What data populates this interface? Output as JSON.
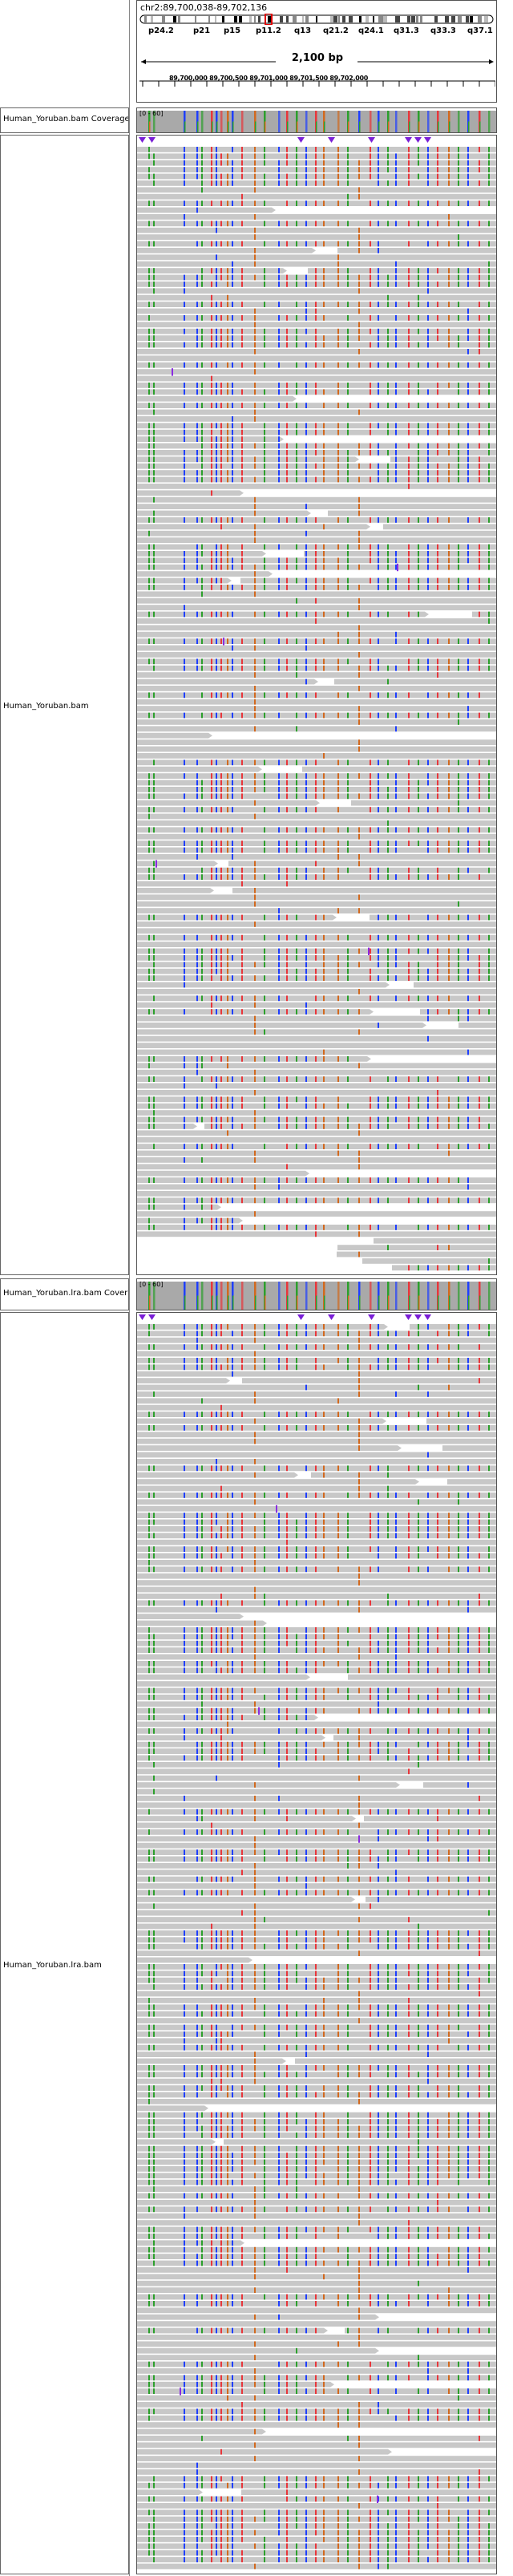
{
  "locus": "chr2:89,700,038-89,702,136",
  "span_label": "2,100 bp",
  "coordinate_labels": "89,700,000 89,700,500 89,701,000 89,701,500 89,702,000",
  "cytobands": [
    {
      "label": "p24.2"
    },
    {
      "label": "p21"
    },
    {
      "label": "p15"
    },
    {
      "label": "p11.2"
    },
    {
      "label": "q13"
    },
    {
      "label": "q21.2"
    },
    {
      "label": "q24.1"
    },
    {
      "label": "q31.3"
    },
    {
      "label": "q33.3"
    },
    {
      "label": "q37.1"
    }
  ],
  "tracks": [
    {
      "coverage_label": "Human_Yoruban.bam Coverage",
      "reads_label": "Human_Yoruban.bam",
      "coverage_range": "[0 - 60]"
    },
    {
      "coverage_label": "Human_Yoruban.lra.bam Coverage",
      "reads_label": "Human_Yoruban.lra.bam",
      "coverage_range": "[0 - 60]"
    }
  ],
  "colors": {
    "read_fill": "#c8c8c8",
    "coverage_fill": "#a9a9a9",
    "base_A": "#2ca02c",
    "base_C": "#1f3fff",
    "base_G": "#d2691e",
    "base_T": "#e8363b",
    "insertion": "#8a2be2",
    "insertion_marker": "#7a1fd6"
  }
}
